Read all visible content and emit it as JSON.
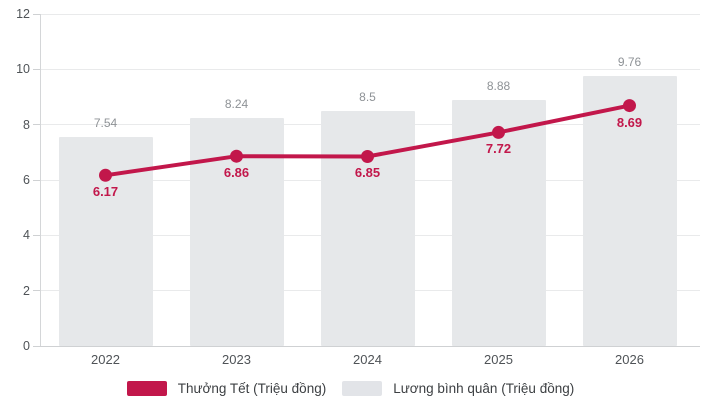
{
  "chart_data": {
    "type": "bar",
    "subtype": "bar-with-line-overlay",
    "title": "",
    "xlabel": "",
    "ylabel": "",
    "categories": [
      "2022",
      "2023",
      "2024",
      "2025",
      "2026"
    ],
    "series": [
      {
        "name": "Thưởng Tết (Triệu đồng)",
        "type": "line",
        "values": [
          6.17,
          6.86,
          6.85,
          7.72,
          8.69
        ],
        "labels": [
          "6.17",
          "6.86",
          "6.85",
          "7.72",
          "8.69"
        ],
        "color": "#c2174b"
      },
      {
        "name": "Lương bình quân (Triệu đồng)",
        "type": "bar",
        "values": [
          7.54,
          8.24,
          8.5,
          8.88,
          9.76
        ],
        "labels": [
          "7.54",
          "8.24",
          "8.5",
          "8.88",
          "9.76"
        ],
        "color": "#e6e8ea",
        "legend_swatch_color": "#e2e4e8"
      }
    ],
    "ylim": [
      0,
      12
    ],
    "y_ticks": [
      "0",
      "2",
      "4",
      "6",
      "8",
      "10",
      "12"
    ],
    "grid": true,
    "legend_position": "bottom"
  },
  "colors": {
    "accent_red": "#c2174b",
    "bar_gray": "#e6e8ea",
    "gridline": "#e9eaeb",
    "axis_line": "#cfd1d3",
    "axis_text": "#4f5357",
    "bar_label_text": "#8e9296",
    "legend_text": "#3d4043"
  }
}
